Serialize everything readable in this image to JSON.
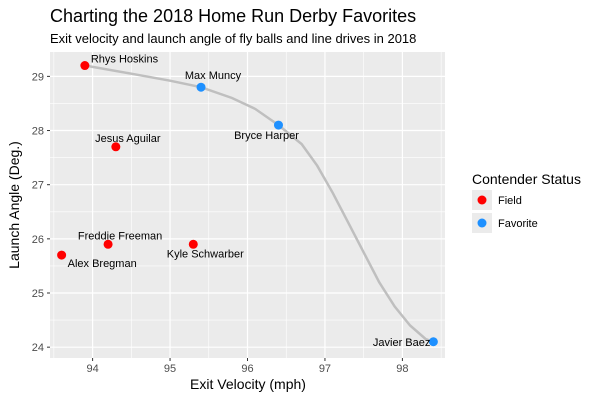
{
  "chart_data": {
    "type": "scatter",
    "title": "Charting the 2018 Home Run Derby Favorites",
    "subtitle": "Exit velocity and launch angle of fly balls and line drives in 2018",
    "xlabel": "Exit Velocity (mph)",
    "ylabel": "Launch Angle (Deg.)",
    "xlim": [
      93.45,
      98.55
    ],
    "ylim": [
      23.8,
      29.45
    ],
    "x_ticks": [
      94,
      95,
      96,
      97,
      98
    ],
    "y_ticks": [
      24,
      25,
      26,
      27,
      28,
      29
    ],
    "grid": true,
    "legend": {
      "title": "Contender Status",
      "placement": "right",
      "entries": [
        {
          "label": "Field",
          "color": "#ff0000"
        },
        {
          "label": "Favorite",
          "color": "#1e90ff"
        }
      ]
    },
    "colors": {
      "Field": "#ff0000",
      "Favorite": "#1e90ff",
      "panel": "#ebebeb",
      "grid": "#ffffff",
      "curve": "#bfbfbf"
    },
    "points": [
      {
        "name": "Rhys Hoskins",
        "x": 93.9,
        "y": 29.2,
        "status": "Field"
      },
      {
        "name": "Max Muncy",
        "x": 95.4,
        "y": 28.8,
        "status": "Favorite"
      },
      {
        "name": "Bryce Harper",
        "x": 96.4,
        "y": 28.1,
        "status": "Favorite"
      },
      {
        "name": "Jesus Aguilar",
        "x": 94.3,
        "y": 27.7,
        "status": "Field"
      },
      {
        "name": "Freddie Freeman",
        "x": 94.2,
        "y": 25.9,
        "status": "Field"
      },
      {
        "name": "Kyle Schwarber",
        "x": 95.3,
        "y": 25.9,
        "status": "Field"
      },
      {
        "name": "Alex Bregman",
        "x": 93.6,
        "y": 25.7,
        "status": "Field"
      },
      {
        "name": "Javier Baez",
        "x": 98.4,
        "y": 24.1,
        "status": "Favorite"
      }
    ],
    "trend_curve": {
      "x": [
        93.9,
        94.5,
        95.0,
        95.4,
        95.8,
        96.1,
        96.4,
        96.7,
        96.9,
        97.1,
        97.3,
        97.5,
        97.7,
        97.9,
        98.1,
        98.3,
        98.4
      ],
      "y": [
        29.2,
        29.05,
        28.92,
        28.8,
        28.6,
        28.4,
        28.1,
        27.75,
        27.35,
        26.85,
        26.3,
        25.75,
        25.2,
        24.75,
        24.4,
        24.15,
        24.1
      ]
    }
  }
}
